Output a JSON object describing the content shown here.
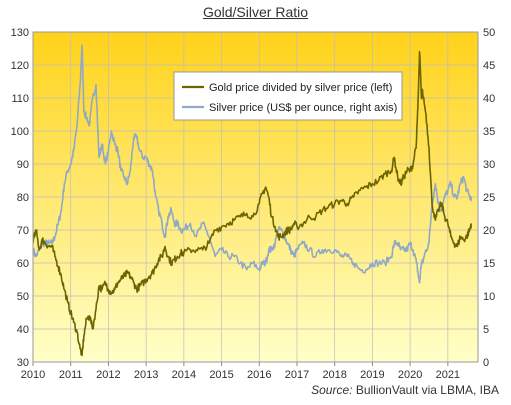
{
  "chart_data": {
    "type": "line",
    "title": "Gold/Silver  Ratio",
    "source_label": "Source:",
    "source_text": "BullionVault via LBMA, IBA",
    "x_ticks": [
      "2010",
      "2011",
      "2012",
      "2013",
      "2014",
      "2015",
      "2016",
      "2017",
      "2018",
      "2019",
      "2020",
      "2021"
    ],
    "y_left": {
      "min": 30,
      "max": 130,
      "ticks": [
        "30",
        "40",
        "50",
        "60",
        "70",
        "80",
        "90",
        "100",
        "110",
        "120",
        "130"
      ]
    },
    "y_right": {
      "min": 0,
      "max": 50,
      "ticks": [
        "0",
        "5",
        "10",
        "15",
        "20",
        "25",
        "30",
        "35",
        "40",
        "45",
        "50"
      ]
    },
    "grid": true,
    "legend_position": "top-center",
    "colors": {
      "ratio": "#6b6400",
      "silver": "#8fa9c6",
      "bg_top": "#ffd21a",
      "bg_bottom": "#ffffc8"
    },
    "series": [
      {
        "name": "Gold price divided by silver price (left)",
        "axis": "left",
        "points": [
          [
            2010.0,
            66
          ],
          [
            2010.08,
            70
          ],
          [
            2010.17,
            64
          ],
          [
            2010.25,
            67
          ],
          [
            2010.33,
            66
          ],
          [
            2010.42,
            65
          ],
          [
            2010.5,
            65
          ],
          [
            2010.58,
            62
          ],
          [
            2010.67,
            59
          ],
          [
            2010.75,
            56
          ],
          [
            2010.83,
            52
          ],
          [
            2010.92,
            48
          ],
          [
            2011.0,
            45
          ],
          [
            2011.08,
            42
          ],
          [
            2011.17,
            39
          ],
          [
            2011.25,
            34
          ],
          [
            2011.3,
            32
          ],
          [
            2011.35,
            38
          ],
          [
            2011.42,
            43
          ],
          [
            2011.5,
            44
          ],
          [
            2011.58,
            40
          ],
          [
            2011.67,
            46
          ],
          [
            2011.75,
            53
          ],
          [
            2011.83,
            52
          ],
          [
            2011.92,
            54
          ],
          [
            2012.0,
            52
          ],
          [
            2012.08,
            51
          ],
          [
            2012.17,
            52
          ],
          [
            2012.25,
            54
          ],
          [
            2012.33,
            55
          ],
          [
            2012.42,
            56
          ],
          [
            2012.5,
            57
          ],
          [
            2012.58,
            56
          ],
          [
            2012.67,
            54
          ],
          [
            2012.75,
            52
          ],
          [
            2012.83,
            53
          ],
          [
            2012.92,
            54
          ],
          [
            2013.0,
            55
          ],
          [
            2013.08,
            56
          ],
          [
            2013.17,
            57
          ],
          [
            2013.25,
            59
          ],
          [
            2013.33,
            61
          ],
          [
            2013.42,
            62
          ],
          [
            2013.5,
            65
          ],
          [
            2013.58,
            62
          ],
          [
            2013.67,
            60
          ],
          [
            2013.75,
            61
          ],
          [
            2013.83,
            62
          ],
          [
            2013.92,
            63
          ],
          [
            2014.0,
            63
          ],
          [
            2014.17,
            64
          ],
          [
            2014.33,
            64
          ],
          [
            2014.5,
            64
          ],
          [
            2014.67,
            66
          ],
          [
            2014.83,
            70
          ],
          [
            2015.0,
            71
          ],
          [
            2015.17,
            72
          ],
          [
            2015.33,
            73
          ],
          [
            2015.5,
            74
          ],
          [
            2015.67,
            75
          ],
          [
            2015.83,
            74
          ],
          [
            2016.0,
            78
          ],
          [
            2016.08,
            81
          ],
          [
            2016.17,
            83
          ],
          [
            2016.25,
            80
          ],
          [
            2016.33,
            74
          ],
          [
            2016.42,
            71
          ],
          [
            2016.5,
            68
          ],
          [
            2016.58,
            68
          ],
          [
            2016.67,
            69
          ],
          [
            2016.75,
            70
          ],
          [
            2016.83,
            70
          ],
          [
            2016.92,
            72
          ],
          [
            2017.0,
            71
          ],
          [
            2017.17,
            72
          ],
          [
            2017.33,
            74
          ],
          [
            2017.5,
            74
          ],
          [
            2017.67,
            76
          ],
          [
            2017.83,
            77
          ],
          [
            2018.0,
            78
          ],
          [
            2018.17,
            79
          ],
          [
            2018.33,
            78
          ],
          [
            2018.5,
            80
          ],
          [
            2018.67,
            82
          ],
          [
            2018.83,
            83
          ],
          [
            2019.0,
            84
          ],
          [
            2019.17,
            85
          ],
          [
            2019.33,
            87
          ],
          [
            2019.5,
            88
          ],
          [
            2019.58,
            92
          ],
          [
            2019.67,
            86
          ],
          [
            2019.75,
            84
          ],
          [
            2019.83,
            86
          ],
          [
            2019.92,
            88
          ],
          [
            2020.0,
            88
          ],
          [
            2020.08,
            90
          ],
          [
            2020.17,
            97
          ],
          [
            2020.22,
            112
          ],
          [
            2020.25,
            124
          ],
          [
            2020.3,
            110
          ],
          [
            2020.33,
            112
          ],
          [
            2020.42,
            105
          ],
          [
            2020.5,
            95
          ],
          [
            2020.58,
            78
          ],
          [
            2020.67,
            73
          ],
          [
            2020.75,
            76
          ],
          [
            2020.83,
            78
          ],
          [
            2020.92,
            74
          ],
          [
            2021.0,
            72
          ],
          [
            2021.08,
            68
          ],
          [
            2021.17,
            66
          ],
          [
            2021.25,
            65
          ],
          [
            2021.33,
            68
          ],
          [
            2021.42,
            67
          ],
          [
            2021.5,
            68
          ],
          [
            2021.58,
            70
          ],
          [
            2021.62,
            72
          ]
        ]
      },
      {
        "name": "Silver price (US$ per ounce, right axis)",
        "axis": "right",
        "points": [
          [
            2010.0,
            17
          ],
          [
            2010.08,
            16
          ],
          [
            2010.17,
            17
          ],
          [
            2010.25,
            18
          ],
          [
            2010.33,
            18
          ],
          [
            2010.42,
            18
          ],
          [
            2010.5,
            18
          ],
          [
            2010.58,
            19
          ],
          [
            2010.67,
            21
          ],
          [
            2010.75,
            23
          ],
          [
            2010.83,
            27
          ],
          [
            2010.92,
            29
          ],
          [
            2011.0,
            30
          ],
          [
            2011.08,
            32
          ],
          [
            2011.17,
            36
          ],
          [
            2011.25,
            42
          ],
          [
            2011.3,
            48
          ],
          [
            2011.35,
            38
          ],
          [
            2011.42,
            37
          ],
          [
            2011.5,
            36
          ],
          [
            2011.58,
            40
          ],
          [
            2011.67,
            42
          ],
          [
            2011.75,
            31
          ],
          [
            2011.83,
            33
          ],
          [
            2011.92,
            30
          ],
          [
            2012.0,
            32
          ],
          [
            2012.08,
            35
          ],
          [
            2012.17,
            33
          ],
          [
            2012.25,
            32
          ],
          [
            2012.33,
            29
          ],
          [
            2012.42,
            28
          ],
          [
            2012.5,
            27
          ],
          [
            2012.58,
            29
          ],
          [
            2012.67,
            34
          ],
          [
            2012.75,
            34
          ],
          [
            2012.83,
            32
          ],
          [
            2012.92,
            31
          ],
          [
            2013.0,
            31
          ],
          [
            2013.08,
            30
          ],
          [
            2013.17,
            29
          ],
          [
            2013.25,
            25
          ],
          [
            2013.33,
            23
          ],
          [
            2013.42,
            21
          ],
          [
            2013.5,
            19
          ],
          [
            2013.58,
            22
          ],
          [
            2013.67,
            23
          ],
          [
            2013.75,
            21
          ],
          [
            2013.83,
            21
          ],
          [
            2013.92,
            20
          ],
          [
            2014.0,
            20
          ],
          [
            2014.17,
            21
          ],
          [
            2014.33,
            19
          ],
          [
            2014.5,
            21
          ],
          [
            2014.67,
            19
          ],
          [
            2014.83,
            16
          ],
          [
            2015.0,
            17
          ],
          [
            2015.17,
            16
          ],
          [
            2015.33,
            16
          ],
          [
            2015.5,
            15
          ],
          [
            2015.67,
            14
          ],
          [
            2015.83,
            15
          ],
          [
            2016.0,
            14
          ],
          [
            2016.08,
            15
          ],
          [
            2016.17,
            15
          ],
          [
            2016.25,
            17
          ],
          [
            2016.33,
            17
          ],
          [
            2016.42,
            18
          ],
          [
            2016.5,
            20
          ],
          [
            2016.58,
            20
          ],
          [
            2016.67,
            19
          ],
          [
            2016.75,
            18
          ],
          [
            2016.83,
            17
          ],
          [
            2016.92,
            16
          ],
          [
            2017.0,
            17
          ],
          [
            2017.17,
            18
          ],
          [
            2017.33,
            17
          ],
          [
            2017.5,
            16
          ],
          [
            2017.67,
            17
          ],
          [
            2017.83,
            17
          ],
          [
            2018.0,
            17
          ],
          [
            2018.17,
            16
          ],
          [
            2018.33,
            16
          ],
          [
            2018.5,
            15
          ],
          [
            2018.67,
            14
          ],
          [
            2018.83,
            14
          ],
          [
            2019.0,
            15
          ],
          [
            2019.17,
            15
          ],
          [
            2019.33,
            15
          ],
          [
            2019.5,
            16
          ],
          [
            2019.58,
            18
          ],
          [
            2019.67,
            18
          ],
          [
            2019.75,
            17
          ],
          [
            2019.83,
            17
          ],
          [
            2019.92,
            17
          ],
          [
            2020.0,
            18
          ],
          [
            2020.08,
            17
          ],
          [
            2020.17,
            15
          ],
          [
            2020.22,
            13
          ],
          [
            2020.25,
            12
          ],
          [
            2020.3,
            15
          ],
          [
            2020.33,
            15
          ],
          [
            2020.42,
            17
          ],
          [
            2020.5,
            18
          ],
          [
            2020.58,
            24
          ],
          [
            2020.67,
            27
          ],
          [
            2020.75,
            24
          ],
          [
            2020.83,
            23
          ],
          [
            2020.92,
            25
          ],
          [
            2021.0,
            26
          ],
          [
            2021.08,
            27
          ],
          [
            2021.17,
            25
          ],
          [
            2021.25,
            25
          ],
          [
            2021.33,
            27
          ],
          [
            2021.42,
            28
          ],
          [
            2021.5,
            26
          ],
          [
            2021.58,
            25
          ],
          [
            2021.62,
            25
          ]
        ]
      }
    ]
  }
}
